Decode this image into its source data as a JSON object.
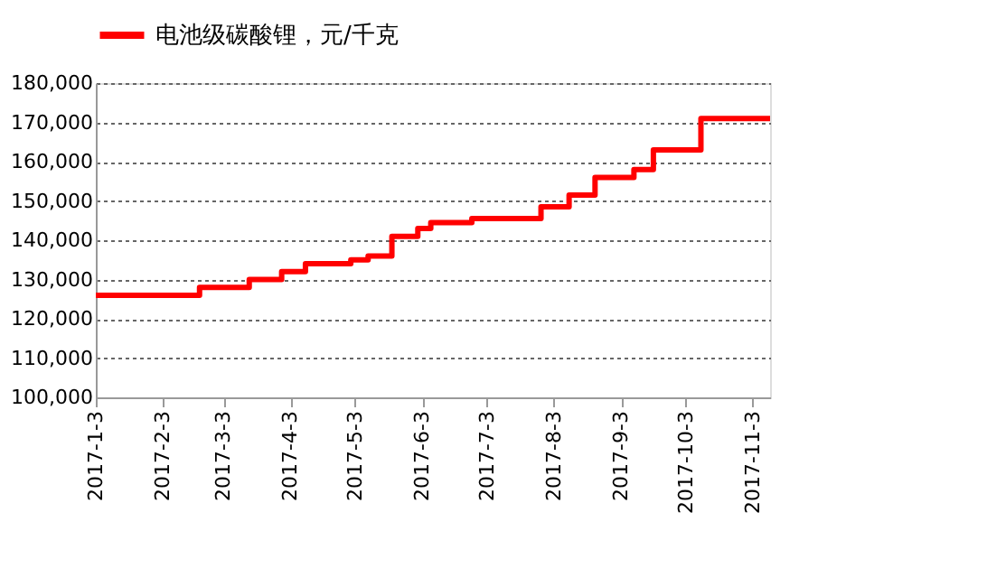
{
  "chart_data": {
    "type": "step",
    "x": [
      "2017-01-03",
      "2017-02-20",
      "2017-03-15",
      "2017-03-30",
      "2017-04-10",
      "2017-05-01",
      "2017-05-09",
      "2017-05-20",
      "2017-06-01",
      "2017-06-07",
      "2017-06-26",
      "2017-07-28",
      "2017-08-10",
      "2017-08-22",
      "2017-09-09",
      "2017-09-18",
      "2017-10-10",
      "2017-11-11"
    ],
    "series": [
      {
        "name": "电池级碳酸锂，元/千克",
        "color": "#ff0000",
        "values": [
          126000,
          128000,
          130000,
          132000,
          134000,
          135000,
          136000,
          141000,
          143000,
          144500,
          145500,
          148500,
          151500,
          156000,
          158000,
          163000,
          171000,
          171000
        ]
      }
    ],
    "xlim": [
      "2017-01-03",
      "2017-11-11"
    ],
    "xticks": [
      {
        "value": "2017-01-03",
        "label": "2017-1-3"
      },
      {
        "value": "2017-02-03",
        "label": "2017-2-3"
      },
      {
        "value": "2017-03-03",
        "label": "2017-3-3"
      },
      {
        "value": "2017-04-03",
        "label": "2017-4-3"
      },
      {
        "value": "2017-05-03",
        "label": "2017-5-3"
      },
      {
        "value": "2017-06-03",
        "label": "2017-6-3"
      },
      {
        "value": "2017-07-03",
        "label": "2017-7-3"
      },
      {
        "value": "2017-08-03",
        "label": "2017-8-3"
      },
      {
        "value": "2017-09-03",
        "label": "2017-9-3"
      },
      {
        "value": "2017-10-03",
        "label": "2017-10-3"
      },
      {
        "value": "2017-11-03",
        "label": "2017-11-3"
      }
    ],
    "ylim": [
      100000,
      180000
    ],
    "yticks": [
      {
        "value": 100000,
        "label": "100,000"
      },
      {
        "value": 110000,
        "label": "110,000"
      },
      {
        "value": 120000,
        "label": "120,000"
      },
      {
        "value": 130000,
        "label": "130,000"
      },
      {
        "value": 140000,
        "label": "140,000"
      },
      {
        "value": 150000,
        "label": "150,000"
      },
      {
        "value": 160000,
        "label": "160,000"
      },
      {
        "value": 170000,
        "label": "170,000"
      },
      {
        "value": 180000,
        "label": "180,000"
      }
    ],
    "grid": "y",
    "legend": "top",
    "line_style": "solid",
    "marker": "none"
  }
}
